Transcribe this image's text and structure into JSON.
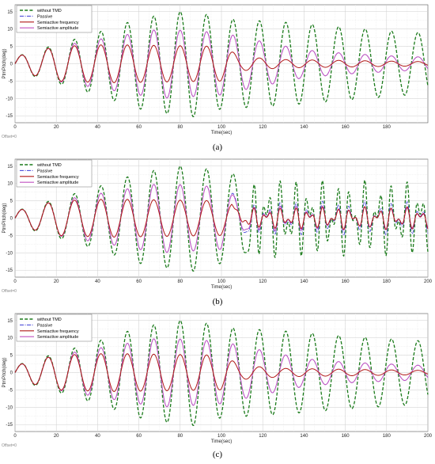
{
  "labels": {
    "a": "(a)",
    "b": "(b)",
    "c": "(c)"
  },
  "chart_data": [
    {
      "type": "line",
      "panel": "a",
      "xlabel": "Time(sec)",
      "ylabel": "PtmPitch(deg)",
      "offset_text": "Offset=0",
      "xlim": [
        0,
        200
      ],
      "ylim": [
        -17,
        17
      ],
      "xticks": [
        0,
        20,
        40,
        60,
        80,
        100,
        120,
        140,
        160,
        180
      ],
      "yticks": [
        -15,
        -10,
        -5,
        0,
        5,
        10,
        15
      ],
      "grid": true,
      "legend_position": "top-left",
      "series": [
        {
          "name": "without TMD",
          "color": "#1a7a1a",
          "style": "dashed",
          "peaks": [
            [
              0,
              2
            ],
            [
              20,
              5.5
            ],
            [
              40,
              9
            ],
            [
              60,
              13
            ],
            [
              85,
              15.5
            ],
            [
              100,
              13
            ],
            [
              130,
              12
            ],
            [
              160,
              10.5
            ],
            [
              190,
              9
            ]
          ],
          "period": 12.8
        },
        {
          "name": "Passive",
          "color": "#3a3ad6",
          "style": "dashdot",
          "peaks": [
            [
              0,
              2
            ],
            [
              20,
              5
            ],
            [
              40,
              7
            ],
            [
              70,
              10
            ],
            [
              100,
              9
            ],
            [
              115,
              7
            ],
            [
              140,
              4
            ],
            [
              160,
              3
            ],
            [
              190,
              2
            ]
          ],
          "period": 12.8
        },
        {
          "name": "Semiactive frequency",
          "color": "#b01818",
          "style": "solid",
          "peaks": [
            [
              0,
              2
            ],
            [
              20,
              5
            ],
            [
              45,
              5.5
            ],
            [
              100,
              5
            ],
            [
              110,
              2
            ],
            [
              130,
              1.2
            ],
            [
              200,
              0.6
            ]
          ],
          "period": 12.8
        },
        {
          "name": "Semiactive amplitude",
          "color": "#c050c0",
          "style": "solid",
          "peaks": [
            [
              0,
              2
            ],
            [
              20,
              5
            ],
            [
              40,
              7
            ],
            [
              70,
              10
            ],
            [
              100,
              9
            ],
            [
              115,
              7
            ],
            [
              140,
              4
            ],
            [
              160,
              3
            ],
            [
              190,
              2
            ]
          ],
          "period": 12.8
        }
      ]
    },
    {
      "type": "line",
      "panel": "b",
      "xlabel": "Time(sec)",
      "ylabel": "PtmPitch(deg)",
      "offset_text": "Offset=0",
      "xlim": [
        0,
        200
      ],
      "ylim": [
        -17,
        17
      ],
      "xticks": [
        0,
        20,
        40,
        60,
        80,
        100,
        120,
        140,
        160,
        180,
        200
      ],
      "yticks": [
        -15,
        -10,
        -5,
        0,
        5,
        10,
        15
      ],
      "grid": true,
      "legend_position": "top-left",
      "series": [
        {
          "name": "without TMD",
          "color": "#1a7a1a",
          "style": "dashed",
          "peaks": [
            [
              0,
              2
            ],
            [
              20,
              5.5
            ],
            [
              40,
              9
            ],
            [
              60,
              13
            ],
            [
              85,
              15.5
            ],
            [
              100,
              13
            ],
            [
              125,
              12
            ],
            [
              150,
              11
            ],
            [
              200,
              11
            ]
          ],
          "period": 12.8,
          "noisy_after": 110
        },
        {
          "name": "Passive",
          "color": "#3a3ad6",
          "style": "dashdot",
          "peaks": [
            [
              0,
              2
            ],
            [
              20,
              5
            ],
            [
              40,
              7
            ],
            [
              70,
              10
            ],
            [
              100,
              9
            ],
            [
              112,
              5
            ],
            [
              200,
              5
            ]
          ],
          "period": 12.8,
          "noisy_after": 110
        },
        {
          "name": "Semiactive frequency",
          "color": "#b01818",
          "style": "solid",
          "peaks": [
            [
              0,
              2
            ],
            [
              20,
              5
            ],
            [
              45,
              5.5
            ],
            [
              100,
              5
            ],
            [
              112,
              3
            ],
            [
              200,
              3.5
            ]
          ],
          "period": 12.8,
          "noisy_after": 105
        },
        {
          "name": "Semiactive amplitude",
          "color": "#c050c0",
          "style": "solid",
          "peaks": [
            [
              0,
              2
            ],
            [
              20,
              5
            ],
            [
              40,
              7
            ],
            [
              70,
              10
            ],
            [
              100,
              9
            ],
            [
              112,
              4
            ],
            [
              200,
              3
            ]
          ],
          "period": 12.8,
          "noisy_after": 110
        }
      ]
    },
    {
      "type": "line",
      "panel": "c",
      "xlabel": "Time(sec)",
      "ylabel": "PtmPitch(deg)",
      "offset_text": "Offset=0",
      "xlim": [
        0,
        200
      ],
      "ylim": [
        -17,
        17
      ],
      "xticks": [
        0,
        20,
        40,
        60,
        80,
        100,
        120,
        140,
        160,
        180,
        200
      ],
      "yticks": [
        -15,
        -10,
        -5,
        0,
        5,
        10,
        15
      ],
      "grid": true,
      "legend_position": "top-left",
      "series": [
        {
          "name": "without TMD",
          "color": "#1a7a1a",
          "style": "dashed",
          "peaks": [
            [
              0,
              2
            ],
            [
              20,
              5.5
            ],
            [
              40,
              9
            ],
            [
              60,
              13
            ],
            [
              85,
              15.5
            ],
            [
              100,
              13
            ],
            [
              130,
              12
            ],
            [
              160,
              10.5
            ],
            [
              200,
              9
            ]
          ],
          "period": 12.8
        },
        {
          "name": "Passive",
          "color": "#3a3ad6",
          "style": "dashdot",
          "peaks": [
            [
              0,
              2
            ],
            [
              20,
              5
            ],
            [
              40,
              7
            ],
            [
              70,
              10
            ],
            [
              100,
              9
            ],
            [
              115,
              7
            ],
            [
              140,
              4
            ],
            [
              160,
              3
            ],
            [
              200,
              2
            ]
          ],
          "period": 12.8
        },
        {
          "name": "Semiactive frequency",
          "color": "#b01818",
          "style": "solid",
          "peaks": [
            [
              0,
              2
            ],
            [
              20,
              5
            ],
            [
              45,
              5.5
            ],
            [
              100,
              5
            ],
            [
              110,
              2
            ],
            [
              130,
              1.2
            ],
            [
              200,
              0.6
            ]
          ],
          "period": 12.8
        },
        {
          "name": "Semiactive amplitude",
          "color": "#c050c0",
          "style": "solid",
          "peaks": [
            [
              0,
              2
            ],
            [
              20,
              5
            ],
            [
              40,
              7
            ],
            [
              70,
              10
            ],
            [
              100,
              9
            ],
            [
              115,
              7
            ],
            [
              140,
              4
            ],
            [
              160,
              3
            ],
            [
              200,
              2
            ]
          ],
          "period": 12.8
        }
      ]
    }
  ]
}
